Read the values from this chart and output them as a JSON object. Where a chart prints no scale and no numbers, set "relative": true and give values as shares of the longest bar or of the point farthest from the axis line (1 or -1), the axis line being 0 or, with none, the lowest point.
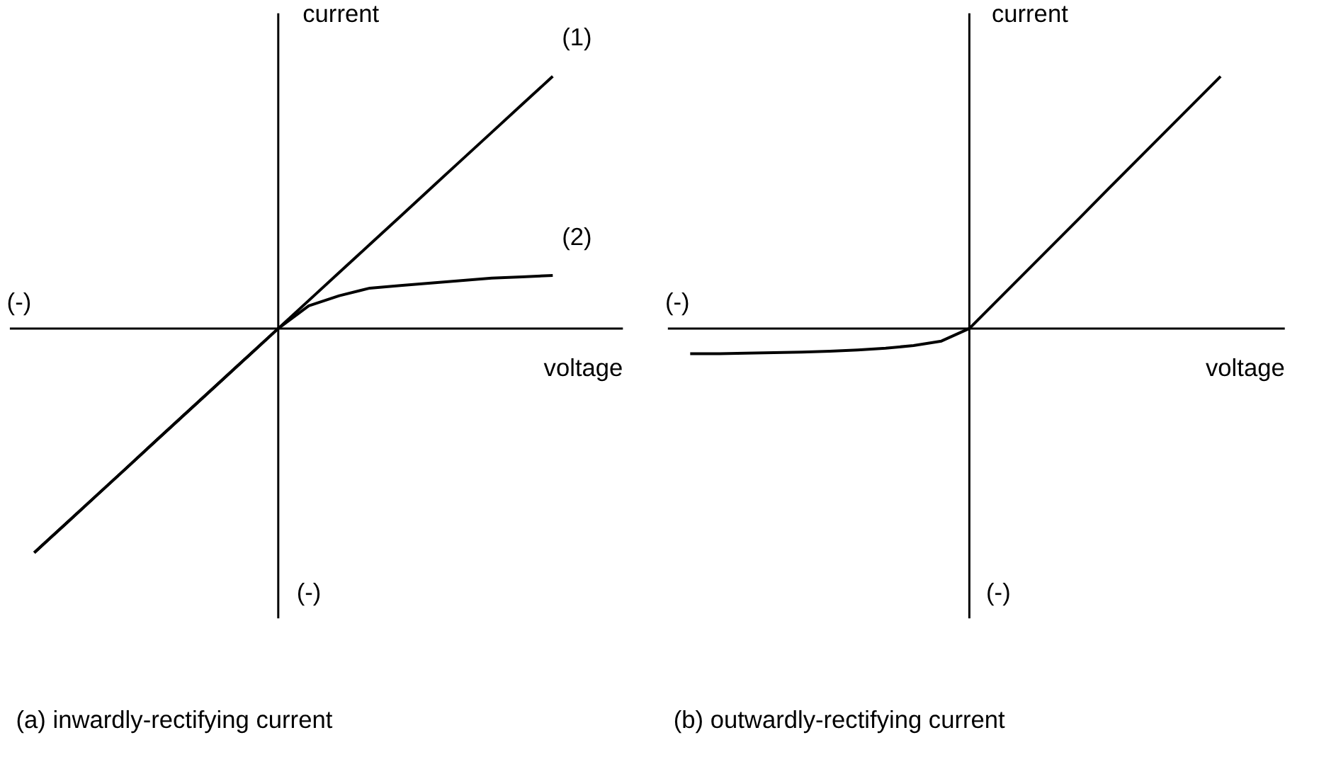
{
  "chart_data": [
    {
      "type": "line",
      "title": "(a) inwardly-rectifying current",
      "xlabel": "voltage",
      "ylabel": "current",
      "relative": true,
      "annotations": [
        "(-)",
        "(-)"
      ],
      "categories": [
        null,
        null,
        null,
        null,
        null,
        null,
        null,
        null,
        null,
        null,
        null,
        null,
        null,
        null,
        null,
        null,
        null,
        null
      ],
      "series": [
        {
          "name": "(1)",
          "color": "#000000",
          "values": [
            -0.889,
            -0.778,
            -0.667,
            -0.556,
            -0.444,
            -0.333,
            -0.222,
            -0.111,
            0,
            0.111,
            0.222,
            0.333,
            0.444,
            0.556,
            0.667,
            0.778,
            0.889,
            1
          ]
        },
        {
          "name": "(2)",
          "color": "#000000",
          "values": [
            -0.889,
            -0.778,
            -0.667,
            -0.556,
            -0.444,
            -0.333,
            -0.222,
            -0.111,
            0,
            0.09,
            0.13,
            0.16,
            0.17,
            0.18,
            0.19,
            0.2,
            0.205,
            0.21
          ]
        }
      ]
    },
    {
      "type": "line",
      "title": "(b) outwardly-rectifying current",
      "xlabel": "voltage",
      "ylabel": "current",
      "relative": true,
      "annotations": [
        "(-)",
        "(-)"
      ],
      "categories": [
        null,
        null,
        null,
        null,
        null,
        null,
        null,
        null,
        null,
        null,
        null,
        null,
        null,
        null,
        null,
        null,
        null,
        null,
        null,
        null
      ],
      "series": [
        {
          "color": "#000000",
          "values": [
            -0.1,
            -0.1,
            -0.098,
            -0.096,
            -0.094,
            -0.09,
            -0.085,
            -0.078,
            -0.068,
            -0.05,
            0,
            0.111,
            0.222,
            0.333,
            0.444,
            0.556,
            0.667,
            0.778,
            0.889,
            1
          ]
        }
      ]
    }
  ]
}
